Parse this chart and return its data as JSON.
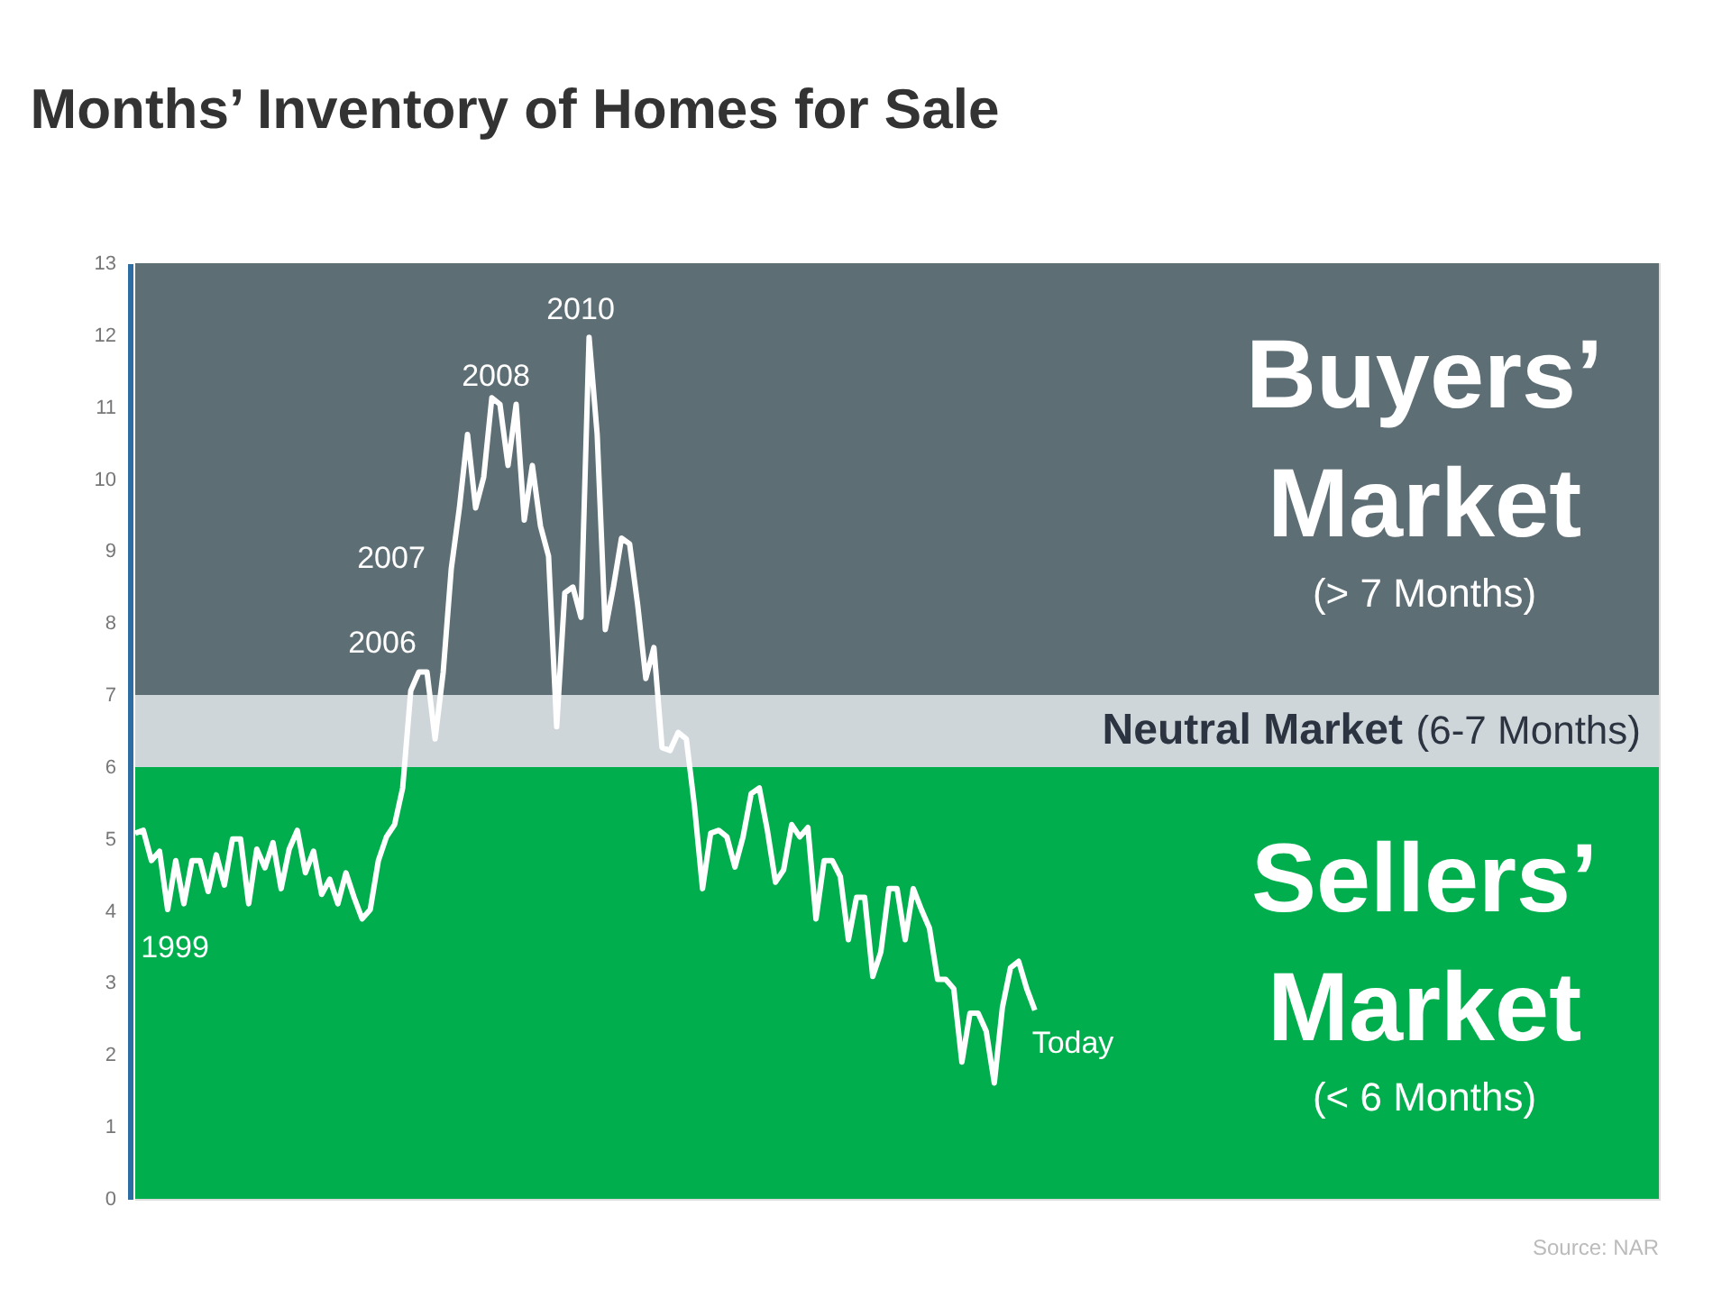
{
  "chart_data": {
    "type": "line",
    "title": "Months’ Inventory of Homes for Sale",
    "categories": [
      null,
      null,
      null,
      null,
      null,
      null,
      null,
      null,
      null,
      null,
      null,
      null,
      null,
      null,
      null,
      null,
      null,
      null,
      null,
      null,
      null,
      null,
      null,
      null,
      null,
      null,
      null,
      null,
      null,
      null,
      null,
      null,
      null,
      null,
      null,
      null,
      null,
      null,
      null,
      null,
      null,
      null,
      null,
      null,
      null,
      null,
      null,
      null,
      null,
      null,
      null,
      null,
      null,
      null,
      null,
      null,
      null,
      null,
      null,
      null,
      null,
      null,
      null,
      null,
      null,
      null,
      null,
      null,
      null,
      null,
      null,
      null,
      null,
      null,
      null,
      null,
      null,
      null,
      null,
      null,
      null,
      null,
      null,
      null,
      null,
      null,
      null,
      null,
      null,
      null,
      null,
      null,
      null,
      null,
      null,
      null,
      null,
      null,
      null,
      null,
      null,
      null,
      null,
      null,
      null,
      null,
      null,
      null,
      null,
      null,
      null,
      null,
      null,
      null,
      null,
      null,
      null,
      null,
      null,
      null,
      null,
      null,
      null,
      null,
      null,
      null,
      null,
      null,
      null,
      null,
      null,
      null,
      null,
      null,
      null,
      null,
      null,
      null,
      null,
      null,
      null,
      null,
      null,
      null,
      null,
      null,
      null,
      null,
      null,
      null,
      null,
      null,
      null,
      null,
      null,
      null,
      null,
      null,
      null,
      null,
      null,
      null,
      null,
      null,
      null,
      null,
      null,
      null,
      null,
      null,
      null,
      null,
      null,
      null,
      null,
      null,
      null,
      null,
      null,
      null,
      null,
      null,
      null,
      null,
      null,
      null,
      null,
      null,
      null
    ],
    "series": [
      {
        "color": "#ffffff",
        "values": [
          5.08,
          5.12,
          4.7,
          4.83,
          4.02,
          4.7,
          4.1,
          4.7,
          4.7,
          4.27,
          4.78,
          4.36,
          5.0,
          5.0,
          4.1,
          4.86,
          4.6,
          4.95,
          4.31,
          4.86,
          5.12,
          4.53,
          4.83,
          4.23,
          4.44,
          4.1,
          4.53,
          4.19,
          3.89,
          4.02,
          4.7,
          5.03,
          5.2,
          5.71,
          7.06,
          7.32,
          7.32,
          6.39,
          7.32,
          8.76,
          9.6,
          10.62,
          9.6,
          10.03,
          11.13,
          11.04,
          10.19,
          11.04,
          9.43,
          10.19,
          9.35,
          8.93,
          6.56,
          8.42,
          8.5,
          8.08,
          11.97,
          10.62,
          7.91,
          8.5,
          9.18,
          9.1,
          8.25,
          7.23,
          7.66,
          6.27,
          6.23,
          6.48,
          6.39,
          5.46,
          4.31,
          5.08,
          5.12,
          5.03,
          4.61,
          5.03,
          5.63,
          5.71,
          5.12,
          4.4,
          4.57,
          5.2,
          5.03,
          5.16,
          3.89,
          4.7,
          4.7,
          4.48,
          3.6,
          4.19,
          4.19,
          3.09,
          3.43,
          4.31,
          4.31,
          3.6,
          4.31,
          4.02,
          3.76,
          3.05,
          3.05,
          2.92,
          1.9,
          2.58,
          2.58,
          2.33,
          1.61,
          2.66,
          3.21,
          3.3,
          2.92,
          2.62,
          null,
          null,
          null,
          null,
          null,
          null,
          null,
          null,
          null,
          null,
          null,
          null,
          null,
          null,
          null,
          null,
          null,
          null,
          null,
          null,
          null,
          null,
          null,
          null,
          null,
          null,
          null,
          null,
          null,
          null,
          null,
          null,
          null,
          null,
          null,
          null,
          null,
          null,
          null,
          null,
          null,
          null,
          null,
          null,
          null,
          null,
          null,
          null,
          null,
          null,
          null,
          null,
          null,
          null,
          null,
          null,
          null,
          null,
          null,
          null,
          null,
          null,
          null,
          null,
          null,
          null,
          null,
          null,
          null,
          null,
          null,
          null,
          null,
          null,
          null,
          null,
          null
        ]
      }
    ],
    "ylim": [
      0,
      13
    ],
    "yticks": [
      0,
      1,
      2,
      3,
      4,
      5,
      6,
      7,
      8,
      9,
      10,
      11,
      12,
      13
    ],
    "marker": "none",
    "line_style": "solid",
    "bands": [
      {
        "axis": "y",
        "from": 7,
        "to": 13,
        "color": "#5d6e75",
        "label": [
          "Buyers’",
          "Market",
          "(> 7 Months)"
        ]
      },
      {
        "axis": "y",
        "from": 6,
        "to": 7,
        "color": "#cfd6da",
        "label": [
          "Neutral Market",
          "(6-7 Months)"
        ]
      },
      {
        "axis": "y",
        "from": 0,
        "to": 6,
        "color": "#00ae4d",
        "label": [
          "Sellers’",
          "Market",
          "(< 6 Months)"
        ]
      }
    ],
    "annotations": [
      "1999",
      "2006",
      "2007",
      "2008",
      "2010",
      "Today",
      "Source: NAR"
    ]
  }
}
